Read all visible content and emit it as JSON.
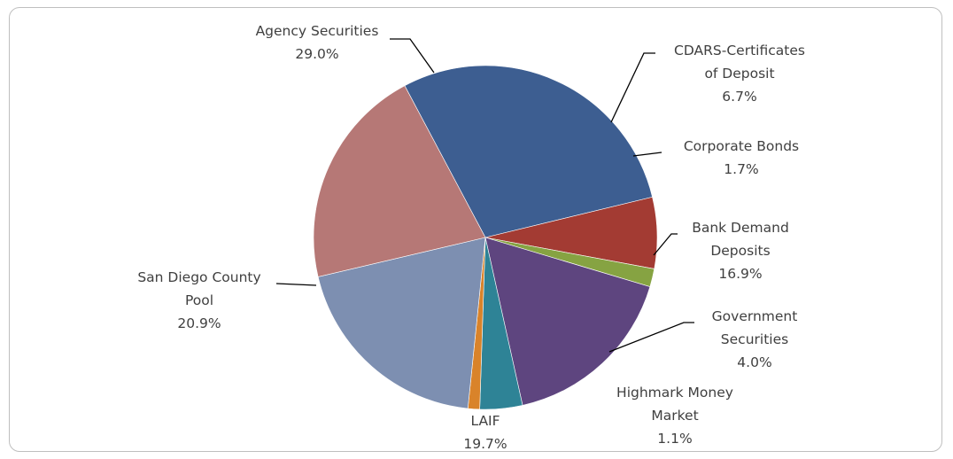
{
  "chart_data": {
    "type": "pie",
    "title": "",
    "slices": [
      {
        "name": "Agency Securities",
        "lines": [
          "Agency Securities"
        ],
        "value": 29.0,
        "pct": "29.0%",
        "color": "#3d5e91"
      },
      {
        "name": "CDARS-Certificates of Deposit",
        "lines": [
          "CDARS-Certificates",
          "of Deposit"
        ],
        "value": 6.7,
        "pct": "6.7%",
        "color": "#a33b33"
      },
      {
        "name": "Corporate Bonds",
        "lines": [
          "Corporate Bonds"
        ],
        "value": 1.7,
        "pct": "1.7%",
        "color": "#86a342"
      },
      {
        "name": "Bank Demand Deposits",
        "lines": [
          "Bank Demand",
          "Deposits"
        ],
        "value": 16.9,
        "pct": "16.9%",
        "color": "#5e457f"
      },
      {
        "name": "Government Securities",
        "lines": [
          "Government",
          "Securities"
        ],
        "value": 4.0,
        "pct": "4.0%",
        "color": "#2e8396"
      },
      {
        "name": "Highmark Money Market",
        "lines": [
          "Highmark Money",
          "Market"
        ],
        "value": 1.1,
        "pct": "1.1%",
        "color": "#d9832a"
      },
      {
        "name": "LAIF",
        "lines": [
          "LAIF"
        ],
        "value": 19.7,
        "pct": "19.7%",
        "color": "#7d8fb1"
      },
      {
        "name": "San Diego County Pool",
        "lines": [
          "San Diego County",
          "Pool"
        ],
        "value": 20.9,
        "pct": "20.9%",
        "color": "#b67876"
      }
    ]
  }
}
